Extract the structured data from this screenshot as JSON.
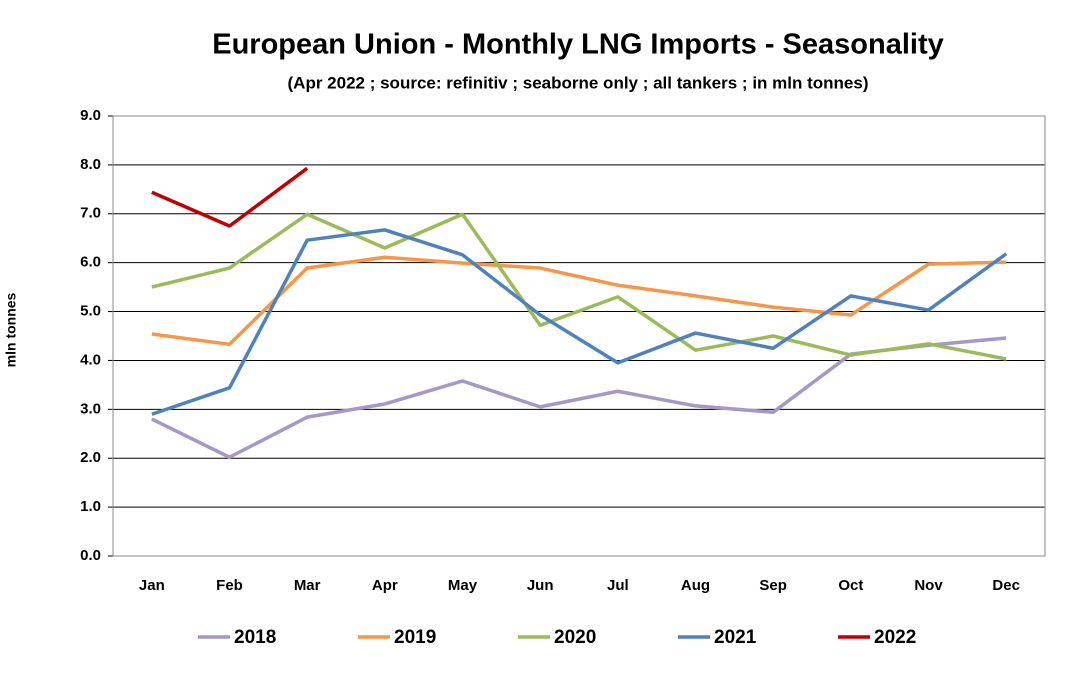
{
  "chart_data": {
    "type": "line",
    "title": "European Union - Monthly LNG Imports - Seasonality",
    "subtitle": "(Apr 2022 ; source: refinitiv ; seaborne only ; all tankers ; in mln tonnes)",
    "y_label": "mln tonnes",
    "categories": [
      "Jan",
      "Feb",
      "Mar",
      "Apr",
      "May",
      "Jun",
      "Jul",
      "Aug",
      "Sep",
      "Oct",
      "Nov",
      "Dec"
    ],
    "series": [
      {
        "name": "2018",
        "color": "#a597c6",
        "values": [
          2.8,
          2.02,
          2.84,
          3.11,
          3.58,
          3.05,
          3.37,
          3.07,
          2.94,
          4.13,
          4.31,
          4.46
        ]
      },
      {
        "name": "2019",
        "color": "#f79646",
        "values": [
          4.54,
          4.33,
          5.89,
          6.11,
          5.99,
          5.89,
          5.54,
          5.32,
          5.09,
          4.93,
          5.97,
          6.01
        ]
      },
      {
        "name": "2020",
        "color": "#9bbb59",
        "values": [
          5.5,
          5.89,
          6.99,
          6.3,
          6.99,
          4.72,
          5.3,
          4.21,
          4.5,
          4.11,
          4.34,
          4.03
        ]
      },
      {
        "name": "2021",
        "color": "#4f81bd",
        "values": [
          2.9,
          3.44,
          6.46,
          6.67,
          6.16,
          4.93,
          3.95,
          4.56,
          4.25,
          5.32,
          5.03,
          6.18
        ]
      },
      {
        "name": "2022",
        "color": "#c00000",
        "values": [
          7.44,
          6.75,
          7.93,
          null,
          null,
          null,
          null,
          null,
          null,
          null,
          null,
          null
        ]
      }
    ],
    "ylim": [
      0,
      9
    ],
    "yticks": [
      {
        "value": 0,
        "label": "0.0"
      },
      {
        "value": 1,
        "label": "1.0"
      },
      {
        "value": 2,
        "label": "2.0"
      },
      {
        "value": 3,
        "label": "3.0"
      },
      {
        "value": 4,
        "label": "4.0"
      },
      {
        "value": 5,
        "label": "5.0"
      },
      {
        "value": 6,
        "label": "6.0"
      },
      {
        "value": 7,
        "label": "7.0"
      },
      {
        "value": 8,
        "label": "8.0"
      },
      {
        "value": 9,
        "label": "9.0"
      }
    ],
    "grid": true,
    "legend": "bottom"
  }
}
